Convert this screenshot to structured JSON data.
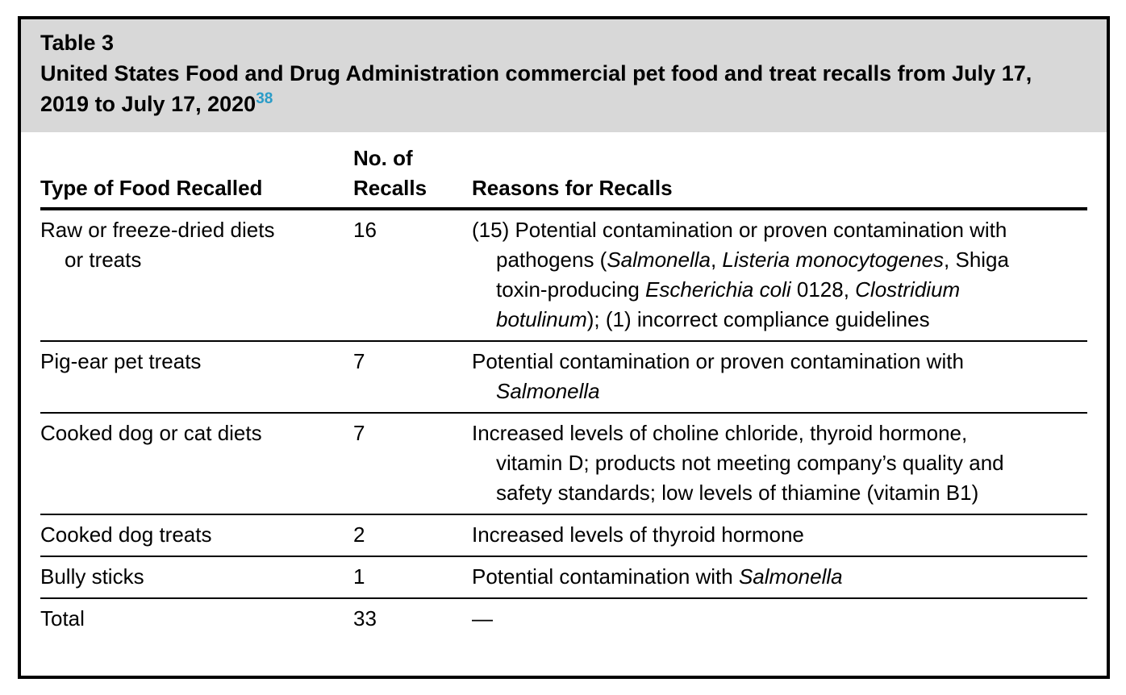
{
  "accent_color": "#2b9cc7",
  "caption": {
    "label": "Table 3",
    "title": "United States Food and Drug Administration commercial pet food and treat recalls from July 17, 2019 to July 17, 2020",
    "footnote_ref": "38"
  },
  "table": {
    "columns": [
      "Type of Food Recalled",
      "No. of Recalls",
      "Reasons for Recalls"
    ],
    "rows": [
      {
        "type": "Raw or freeze-dried diets or treats",
        "count": "16",
        "reasons": [
          {
            "t": "(15) Potential contamination or proven contamination with pathogens ("
          },
          {
            "t": "Salmonella",
            "i": true
          },
          {
            "t": ", "
          },
          {
            "t": "Listeria monocytogenes",
            "i": true
          },
          {
            "t": ", Shiga toxin-producing "
          },
          {
            "t": "Escherichia coli",
            "i": true
          },
          {
            "t": " 0128, "
          },
          {
            "t": "Clostridium botulinum",
            "i": true
          },
          {
            "t": "); (1) incorrect compliance guidelines"
          }
        ]
      },
      {
        "type": "Pig-ear pet treats",
        "count": "7",
        "reasons": [
          {
            "t": "Potential contamination or proven contamination with "
          },
          {
            "t": "Salmonella",
            "i": true
          }
        ]
      },
      {
        "type": "Cooked dog or cat diets",
        "count": "7",
        "reasons": [
          {
            "t": "Increased levels of choline chloride, thyroid hormone, vitamin D; products not meeting company’s quality and safety standards; low levels of thiamine (vitamin B1)"
          }
        ]
      },
      {
        "type": "Cooked dog treats",
        "count": "2",
        "reasons": [
          {
            "t": "Increased levels of thyroid hormone"
          }
        ]
      },
      {
        "type": "Bully sticks",
        "count": "1",
        "reasons": [
          {
            "t": "Potential contamination with "
          },
          {
            "t": "Salmonella",
            "i": true
          }
        ]
      },
      {
        "type": "Total",
        "count": "33",
        "reasons": [
          {
            "t": "—"
          }
        ]
      }
    ]
  }
}
